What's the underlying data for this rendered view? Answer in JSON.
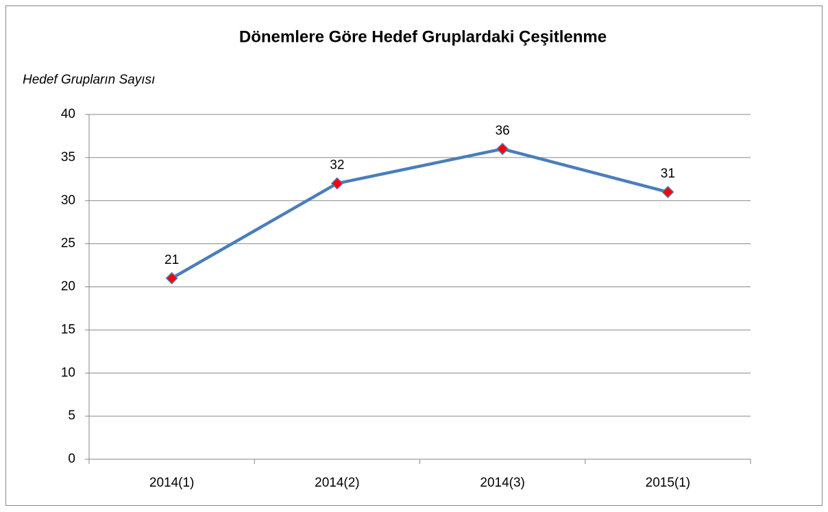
{
  "chart_data": {
    "type": "line",
    "title": "Dönemlere Göre Hedef Gruplardaki Çeşitlenme",
    "y_label": "Hedef Grupların Sayısı",
    "categories": [
      "2014(1)",
      "2014(2)",
      "2014(3)",
      "2015(1)"
    ],
    "series": [
      {
        "name": "Hedef Grupların Sayısı",
        "color": "#4a7ebb",
        "marker_color": "#ff0000",
        "values": [
          21,
          32,
          36,
          31
        ]
      }
    ],
    "ylim": [
      0,
      40
    ],
    "yticks": [
      0,
      5,
      10,
      15,
      20,
      25,
      30,
      35,
      40
    ],
    "grid": true,
    "data_labels": true
  }
}
